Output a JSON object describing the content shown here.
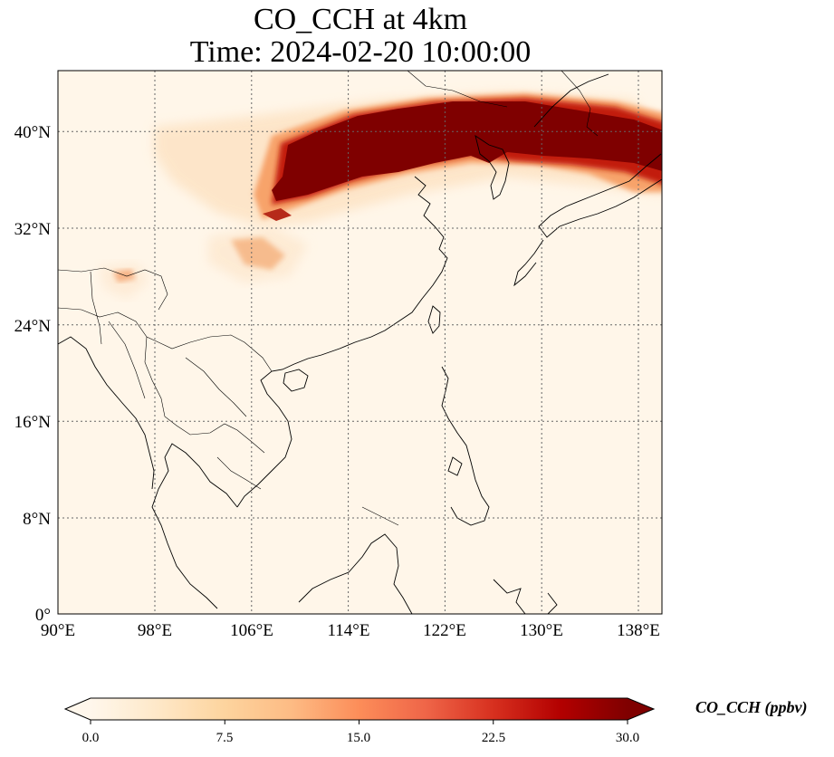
{
  "title": {
    "line1": "CO_CCH at 4km",
    "line2": "Time: 2024-02-20 10:00:00"
  },
  "map": {
    "lon_range": [
      90,
      140
    ],
    "lat_range": [
      0,
      45
    ],
    "lon_ticks": [
      "90°E",
      "98°E",
      "106°E",
      "114°E",
      "122°E",
      "130°E",
      "138°E"
    ],
    "lat_ticks": [
      "0°",
      "8°N",
      "16°N",
      "24°N",
      "32°N",
      "40°N"
    ],
    "gridlines": true,
    "coastlines": true,
    "borders": true,
    "colormap": "OrRd"
  },
  "colorbar": {
    "label": "CO_CCH (ppbv)",
    "ticks": [
      "0.0",
      "7.5",
      "15.0",
      "22.5",
      "30.0"
    ],
    "range": [
      0.0,
      30.0
    ],
    "extend": "both",
    "colors": [
      "#fff7ec",
      "#fee8c8",
      "#fdd49e",
      "#fdbb84",
      "#fc8d59",
      "#ef6548",
      "#d7301f",
      "#b30000",
      "#7f0000"
    ]
  }
}
